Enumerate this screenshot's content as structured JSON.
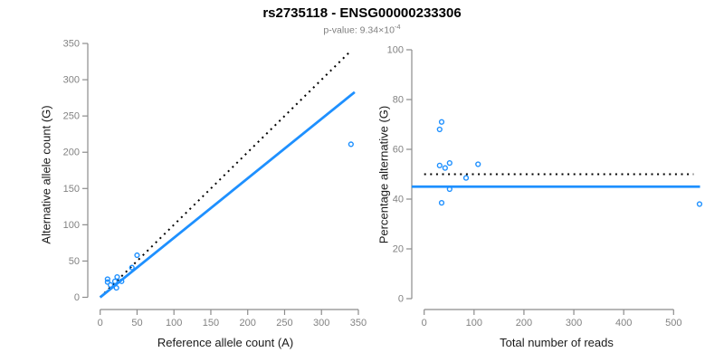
{
  "header": {
    "title": "rs2735118 - ENSG00000233306",
    "subtitle_label": "p-value: ",
    "subtitle_mantissa": "9.34×10",
    "subtitle_exponent": "-4"
  },
  "colors": {
    "accent_blue": "#1e90ff",
    "dotted_line": "#000000",
    "axis": "#8c8c8c",
    "tick_label": "#828282"
  },
  "chart_data": [
    {
      "type": "scatter",
      "panel": "left",
      "xlabel": "Reference allele count (A)",
      "ylabel": "Alternative allele count (G)",
      "xlim": [
        0,
        350
      ],
      "ylim": [
        0,
        350
      ],
      "x_ticks": [
        0,
        50,
        100,
        150,
        200,
        250,
        300,
        350
      ],
      "y_ticks": [
        0,
        50,
        100,
        150,
        200,
        250,
        300,
        350
      ],
      "grid": false,
      "points": [
        [
          10,
          25
        ],
        [
          10,
          21
        ],
        [
          14,
          17
        ],
        [
          20,
          22
        ],
        [
          23,
          28
        ],
        [
          50,
          58
        ],
        [
          43,
          41
        ],
        [
          29,
          22
        ],
        [
          22,
          13
        ],
        [
          340,
          211
        ]
      ],
      "lines": [
        {
          "name": "identity-line",
          "style": "dotted",
          "slope": 1,
          "intercept": 0,
          "x_range": [
            0,
            340
          ]
        },
        {
          "name": "fit-line",
          "style": "solid",
          "slope": 0.82,
          "intercept": 0,
          "x_range": [
            0,
            345
          ]
        }
      ]
    },
    {
      "type": "scatter",
      "panel": "right",
      "xlabel": "Total number of reads",
      "ylabel": "Percentage alternative (G)",
      "xlim": [
        0,
        550
      ],
      "ylim": [
        0,
        100
      ],
      "x_ticks": [
        0,
        100,
        200,
        300,
        400,
        500
      ],
      "y_ticks": [
        0,
        20,
        40,
        60,
        80,
        100
      ],
      "grid": false,
      "points": [
        [
          35,
          71
        ],
        [
          31,
          68
        ],
        [
          31,
          53.5
        ],
        [
          42,
          52.5
        ],
        [
          51,
          54.5
        ],
        [
          108,
          54
        ],
        [
          84,
          48.5
        ],
        [
          51,
          44
        ],
        [
          35,
          38.5
        ],
        [
          552,
          38
        ]
      ],
      "lines": [
        {
          "name": "expected-50-line",
          "style": "dotted",
          "slope": 0,
          "intercept": 50,
          "x_range": [
            0,
            540
          ]
        },
        {
          "name": "fit-line",
          "style": "solid",
          "slope": 0,
          "intercept": 45,
          "x_range": [
            -25,
            553
          ]
        }
      ]
    }
  ]
}
